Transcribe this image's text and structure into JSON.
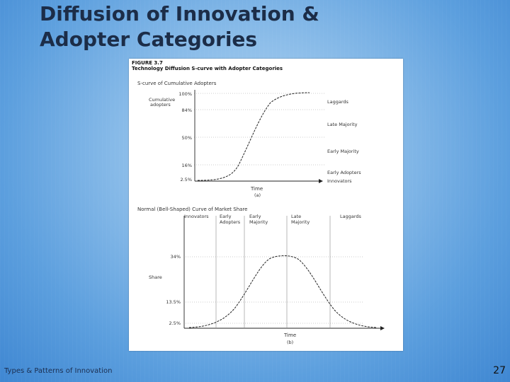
{
  "slide": {
    "title_line1": "Diffusion of Innovation &",
    "title_line2": "Adopter Categories",
    "footer": "Types & Patterns of Innovation",
    "page_number": "27"
  },
  "figure": {
    "number": "FIGURE 3.7",
    "caption": "Technology Diffusion S-curve with Adopter Categories"
  },
  "s_curve": {
    "title": "S-curve of Cumulative Adopters",
    "ylabel_line1": "Cumulative",
    "ylabel_line2": "adopters",
    "y_ticks": [
      "100%",
      "84%",
      "50%",
      "16%",
      "2.5%"
    ],
    "xlabel": "Time",
    "sublabel": "(a)",
    "categories": [
      "Laggards",
      "Late Majority",
      "Early Majority",
      "Early Adopters",
      "Innovators"
    ]
  },
  "bell_curve": {
    "title": "Normal (Bell-Shaped) Curve of Market Share",
    "header_innovators": "Innovators",
    "header_early_adopters_1": "Early",
    "header_early_adopters_2": "Adopters",
    "header_early_majority_1": "Early",
    "header_early_majority_2": "Majority",
    "header_late_majority_1": "Late",
    "header_late_majority_2": "Majority",
    "header_laggards": "Laggards",
    "ylabel": "Share",
    "y_ticks": [
      "34%",
      "13.5%",
      "2.5%"
    ],
    "xlabel": "Time",
    "sublabel": "(b)"
  }
}
